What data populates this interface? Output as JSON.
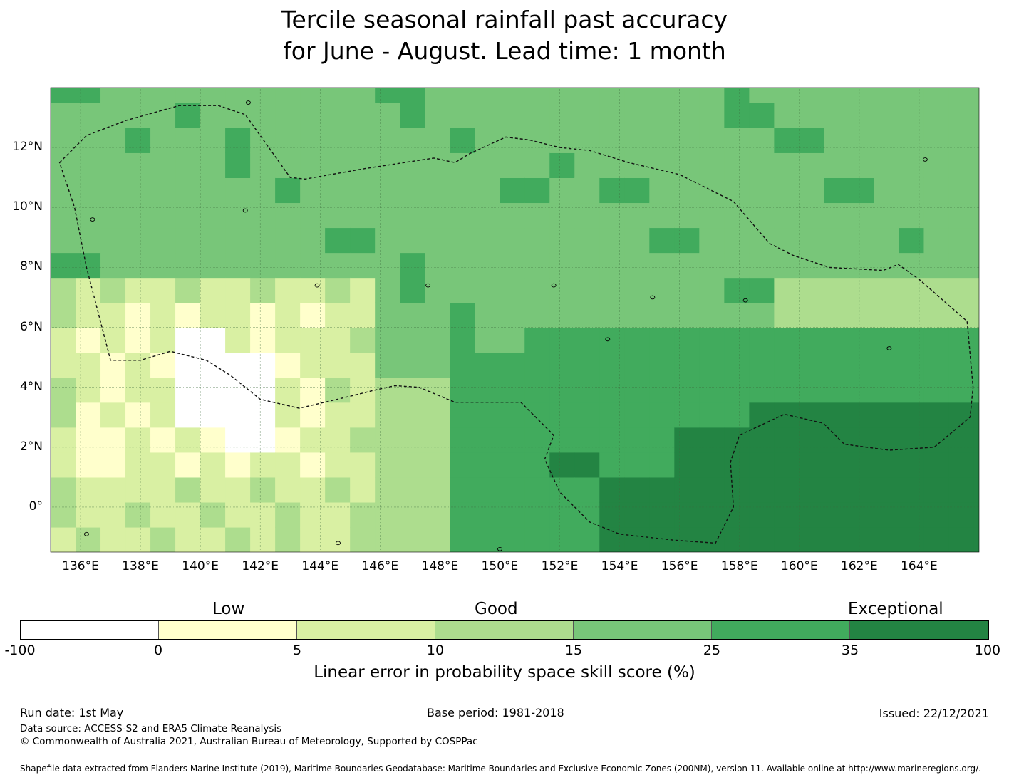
{
  "title": {
    "line1": "Tercile seasonal rainfall past accuracy",
    "line2": "for June - August. Lead time: 1 month"
  },
  "map": {
    "lon_range": [
      135,
      166
    ],
    "lat_range": [
      -1.5,
      14
    ],
    "grid_step_deg": 0.833,
    "lat_labels": [
      "12°N",
      "10°N",
      "8°N",
      "6°N",
      "4°N",
      "2°N",
      "0°"
    ],
    "lat_values": [
      12,
      10,
      8,
      6,
      4,
      2,
      0
    ],
    "lon_labels": [
      "136°E",
      "138°E",
      "140°E",
      "142°E",
      "144°E",
      "146°E",
      "148°E",
      "150°E",
      "152°E",
      "154°E",
      "156°E",
      "158°E",
      "160°E",
      "162°E",
      "164°E"
    ],
    "lon_values": [
      136,
      138,
      140,
      142,
      144,
      146,
      148,
      150,
      152,
      154,
      156,
      158,
      160,
      162,
      164
    ],
    "eez_boundary_lonlat": [
      [
        135.3,
        11.5
      ],
      [
        136.2,
        12.4
      ],
      [
        137.5,
        12.9
      ],
      [
        139.3,
        13.4
      ],
      [
        140.6,
        13.4
      ],
      [
        141.5,
        13.1
      ],
      [
        143.0,
        11.0
      ],
      [
        143.5,
        10.95
      ],
      [
        145.5,
        11.3
      ],
      [
        147.8,
        11.65
      ],
      [
        148.5,
        11.5
      ],
      [
        149.0,
        11.8
      ],
      [
        150.2,
        12.35
      ],
      [
        151.0,
        12.25
      ],
      [
        152.0,
        12.0
      ],
      [
        153.0,
        11.9
      ],
      [
        154.3,
        11.5
      ],
      [
        156.0,
        11.1
      ],
      [
        157.0,
        10.6
      ],
      [
        157.8,
        10.2
      ],
      [
        159.0,
        8.8
      ],
      [
        159.8,
        8.4
      ],
      [
        161.0,
        8.0
      ],
      [
        162.8,
        7.9
      ],
      [
        163.3,
        8.1
      ],
      [
        164.0,
        7.6
      ],
      [
        165.6,
        6.2
      ],
      [
        165.8,
        4.0
      ],
      [
        165.7,
        3.0
      ],
      [
        164.5,
        2.0
      ],
      [
        163.0,
        1.9
      ],
      [
        161.5,
        2.1
      ],
      [
        160.8,
        2.8
      ],
      [
        159.5,
        3.1
      ],
      [
        158.0,
        2.4
      ],
      [
        157.7,
        1.5
      ],
      [
        157.8,
        0.0
      ],
      [
        157.2,
        -1.2
      ],
      [
        155.8,
        -1.1
      ],
      [
        154.0,
        -0.9
      ],
      [
        153.0,
        -0.5
      ],
      [
        152.0,
        0.5
      ],
      [
        151.5,
        1.6
      ],
      [
        151.8,
        2.4
      ],
      [
        150.7,
        3.5
      ],
      [
        149.8,
        3.5
      ],
      [
        148.5,
        3.5
      ],
      [
        147.3,
        4.0
      ],
      [
        146.5,
        4.05
      ],
      [
        145.8,
        3.9
      ],
      [
        145.0,
        3.7
      ],
      [
        143.3,
        3.3
      ],
      [
        142.0,
        3.6
      ],
      [
        141.0,
        4.4
      ],
      [
        140.2,
        4.9
      ],
      [
        139.0,
        5.2
      ],
      [
        138.0,
        4.9
      ],
      [
        137.0,
        4.9
      ],
      [
        136.2,
        8.0
      ],
      [
        135.8,
        10.0
      ],
      [
        135.3,
        11.5
      ]
    ]
  },
  "colorbar": {
    "categories": [
      "Low",
      "Good",
      "Exceptional"
    ],
    "ticks": [
      "-100",
      "0",
      "5",
      "10",
      "15",
      "25",
      "35",
      "100"
    ],
    "colors": [
      "#ffffff",
      "#ffffcc",
      "#d9f0a3",
      "#addd8e",
      "#78c679",
      "#41ab5d",
      "#238443"
    ],
    "label": "Linear error in probability space skill score (%)"
  },
  "footer": {
    "run_date": "Run date: 1st May",
    "base_period": "Base period: 1981-2018",
    "issued": "Issued: 22/12/2021",
    "data_source": "Data source: ACCESS-S2 and ERA5 Climate Reanalysis",
    "copyright": "© Commonwealth of Australia 2021, Australian Bureau of Meteorology, Supported by COSPPac",
    "shapefile": "Shapefile data extracted from Flanders Marine Institute (2019), Maritime Boundaries Geodatabase: Maritime Boundaries and Exclusive Economic Zones (200NM), version 11. Available online at http://www.marineregions.org/."
  }
}
